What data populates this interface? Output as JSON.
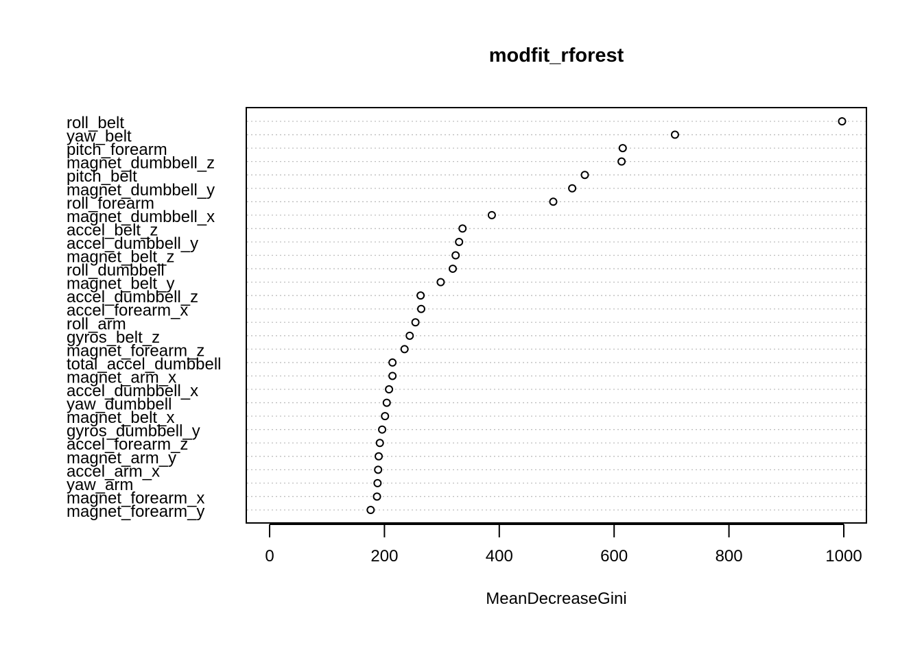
{
  "chart_data": {
    "type": "scatter",
    "subtype": "dotchart",
    "title": "modfit_rforest",
    "xlabel": "MeanDecreaseGini",
    "ylabel": "",
    "xlim": [
      0,
      1000
    ],
    "xticks": [
      0,
      200,
      400,
      600,
      800,
      1000
    ],
    "grid": "dotted horizontal guide lines",
    "categories": [
      "roll_belt",
      "yaw_belt",
      "pitch_forearm",
      "magnet_dumbbell_z",
      "pitch_belt",
      "magnet_dumbbell_y",
      "roll_forearm",
      "magnet_dumbbell_x",
      "accel_belt_z",
      "accel_dumbbell_y",
      "magnet_belt_z",
      "roll_dumbbell",
      "magnet_belt_y",
      "accel_dumbbell_z",
      "accel_forearm_x",
      "roll_arm",
      "gyros_belt_z",
      "magnet_forearm_z",
      "total_accel_dumbbell",
      "magnet_arm_x",
      "accel_dumbbell_x",
      "yaw_dumbbell",
      "magnet_belt_x",
      "gyros_dumbbell_y",
      "accel_forearm_z",
      "magnet_arm_y",
      "accel_arm_x",
      "yaw_arm",
      "magnet_forearm_x",
      "magnet_forearm_y"
    ],
    "values": [
      997,
      706,
      615,
      613,
      549,
      527,
      494,
      387,
      336,
      330,
      324,
      319,
      298,
      263,
      264,
      254,
      244,
      235,
      214,
      214,
      208,
      204,
      201,
      196,
      192,
      190,
      189,
      188,
      187,
      176
    ]
  }
}
